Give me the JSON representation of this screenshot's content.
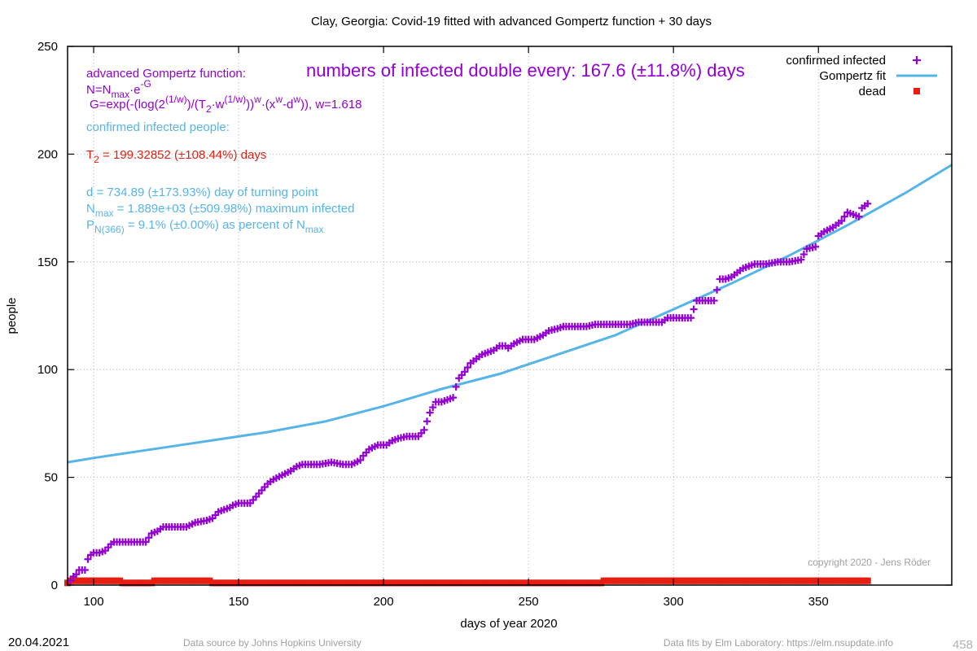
{
  "page": {
    "date": "20.04.2021",
    "source_left": "Data source by Johns Hopkins University",
    "source_right": "Data fits by Elm Laboratory: https://elm.nsupdate.info",
    "page_number": "458",
    "copyright": "copyright 2020 - Jens Röder"
  },
  "annotations": {
    "doubling": "numbers of infected double every: 167.6 (±11.8%) days",
    "gompertz_title": "advanced Gompertz function:",
    "formula_n_a": "N=N",
    "formula_n_sub": "max",
    "formula_n_b": "·e",
    "formula_n_sup": "-G",
    "formula_g_a": "G=exp(-(log(2",
    "formula_g_sup1": "(1/w)",
    "formula_g_b": ")/(T",
    "formula_g_sub2": "2",
    "formula_g_c": "·w",
    "formula_g_sup2": "(1/w)",
    "formula_g_d": "))",
    "formula_g_sup3": "w",
    "formula_g_e": "·(x",
    "formula_g_sup4": "w",
    "formula_g_f": "-d",
    "formula_g_sup5": "w",
    "formula_g_g": ")), w=1.618",
    "confirmed_label": "confirmed infected people:",
    "t2_a": "T",
    "t2_sub": "2",
    "t2_b": " = 199.32852 (±108.44%) days",
    "d_line": "d = 734.89 (±173.93%) day of turning point",
    "nmax_a": "N",
    "nmax_sub": "max",
    "nmax_b": " = 1.889e+03 (±509.98%) maximum infected",
    "p_a": "P",
    "p_sub": "N(366)",
    "p_b": " = 9.1% (±0.00%) as percent of N",
    "p_sub2": "max"
  },
  "chart_data": {
    "type": "scatter",
    "title": "Clay,  Georgia: Covid-19 fitted with advanced Gompertz function + 30 days",
    "xlabel": "days of year 2020",
    "ylabel": "people",
    "xlim": [
      91,
      396
    ],
    "ylim": [
      0,
      250
    ],
    "xticks": [
      100,
      150,
      200,
      250,
      300,
      350
    ],
    "yticks": [
      0,
      50,
      100,
      150,
      200,
      250
    ],
    "grid": true,
    "legend_position": "top-right",
    "colors": {
      "confirmed": "#9400d3",
      "fit": "#56b4e9",
      "dead": "#e51e10"
    },
    "series": [
      {
        "name": "confirmed infected",
        "style": "points",
        "points": [
          [
            92,
            2
          ],
          [
            93,
            4
          ],
          [
            94,
            5
          ],
          [
            95,
            7
          ],
          [
            97,
            7
          ],
          [
            98,
            12
          ],
          [
            99,
            14
          ],
          [
            100,
            15
          ],
          [
            102,
            15
          ],
          [
            104,
            16
          ],
          [
            106,
            19
          ],
          [
            107,
            20
          ],
          [
            110,
            20
          ],
          [
            114,
            20
          ],
          [
            118,
            20
          ],
          [
            119,
            22
          ],
          [
            120,
            24
          ],
          [
            122,
            25
          ],
          [
            124,
            27
          ],
          [
            128,
            27
          ],
          [
            132,
            27
          ],
          [
            135,
            29
          ],
          [
            139,
            30
          ],
          [
            141,
            31
          ],
          [
            143,
            34
          ],
          [
            145,
            35
          ],
          [
            147,
            36
          ],
          [
            148,
            37
          ],
          [
            150,
            38
          ],
          [
            154,
            38
          ],
          [
            156,
            41
          ],
          [
            158,
            44
          ],
          [
            160,
            47
          ],
          [
            162,
            49
          ],
          [
            165,
            51
          ],
          [
            168,
            53
          ],
          [
            170,
            55
          ],
          [
            172,
            56
          ],
          [
            178,
            56
          ],
          [
            182,
            57
          ],
          [
            186,
            56
          ],
          [
            189,
            56
          ],
          [
            192,
            58
          ],
          [
            193,
            60
          ],
          [
            195,
            63
          ],
          [
            198,
            65
          ],
          [
            201,
            65
          ],
          [
            203,
            67
          ],
          [
            205,
            68
          ],
          [
            208,
            69
          ],
          [
            212,
            69
          ],
          [
            214,
            72
          ],
          [
            215,
            76
          ],
          [
            216,
            80
          ],
          [
            218,
            85
          ],
          [
            220,
            85
          ],
          [
            222,
            86
          ],
          [
            224,
            87
          ],
          [
            225,
            92
          ],
          [
            226,
            96
          ],
          [
            228,
            99
          ],
          [
            230,
            103
          ],
          [
            232,
            105
          ],
          [
            234,
            107
          ],
          [
            236,
            108
          ],
          [
            238,
            109
          ],
          [
            240,
            111
          ],
          [
            242,
            111
          ],
          [
            243,
            110
          ],
          [
            245,
            112
          ],
          [
            248,
            114
          ],
          [
            252,
            114
          ],
          [
            255,
            116
          ],
          [
            257,
            118
          ],
          [
            260,
            119
          ],
          [
            262,
            120
          ],
          [
            266,
            120
          ],
          [
            270,
            120
          ],
          [
            273,
            121
          ],
          [
            276,
            121
          ],
          [
            280,
            121
          ],
          [
            285,
            121
          ],
          [
            288,
            122
          ],
          [
            293,
            122
          ],
          [
            296,
            122
          ],
          [
            298,
            124
          ],
          [
            302,
            124
          ],
          [
            306,
            124
          ],
          [
            308,
            132
          ],
          [
            310,
            132
          ],
          [
            314,
            132
          ],
          [
            316,
            142
          ],
          [
            318,
            142
          ],
          [
            320,
            143
          ],
          [
            322,
            145
          ],
          [
            324,
            147
          ],
          [
            326,
            148
          ],
          [
            328,
            149
          ],
          [
            332,
            149
          ],
          [
            336,
            150
          ],
          [
            340,
            150
          ],
          [
            344,
            151
          ],
          [
            346,
            156
          ],
          [
            349,
            157
          ],
          [
            350,
            162
          ],
          [
            352,
            164
          ],
          [
            355,
            166
          ],
          [
            358,
            169
          ],
          [
            360,
            173
          ],
          [
            362,
            172
          ],
          [
            364,
            171
          ],
          [
            365,
            175
          ],
          [
            367,
            177
          ]
        ]
      },
      {
        "name": "Gompertz fit",
        "style": "line",
        "points": [
          [
            91,
            57
          ],
          [
            100,
            59
          ],
          [
            120,
            63
          ],
          [
            140,
            67
          ],
          [
            160,
            71
          ],
          [
            180,
            76
          ],
          [
            200,
            83
          ],
          [
            220,
            91
          ],
          [
            240,
            98
          ],
          [
            260,
            107
          ],
          [
            280,
            116
          ],
          [
            300,
            128
          ],
          [
            320,
            140
          ],
          [
            340,
            153
          ],
          [
            360,
            167
          ],
          [
            380,
            182
          ],
          [
            396,
            195
          ]
        ]
      },
      {
        "name": "dead",
        "style": "squares",
        "points": [
          [
            91,
            1
          ],
          [
            92,
            2
          ],
          [
            109,
            2
          ],
          [
            110,
            1
          ],
          [
            121,
            2
          ],
          [
            140,
            2
          ],
          [
            141,
            1
          ],
          [
            275,
            1
          ],
          [
            276,
            2
          ],
          [
            367,
            2
          ]
        ]
      }
    ]
  }
}
